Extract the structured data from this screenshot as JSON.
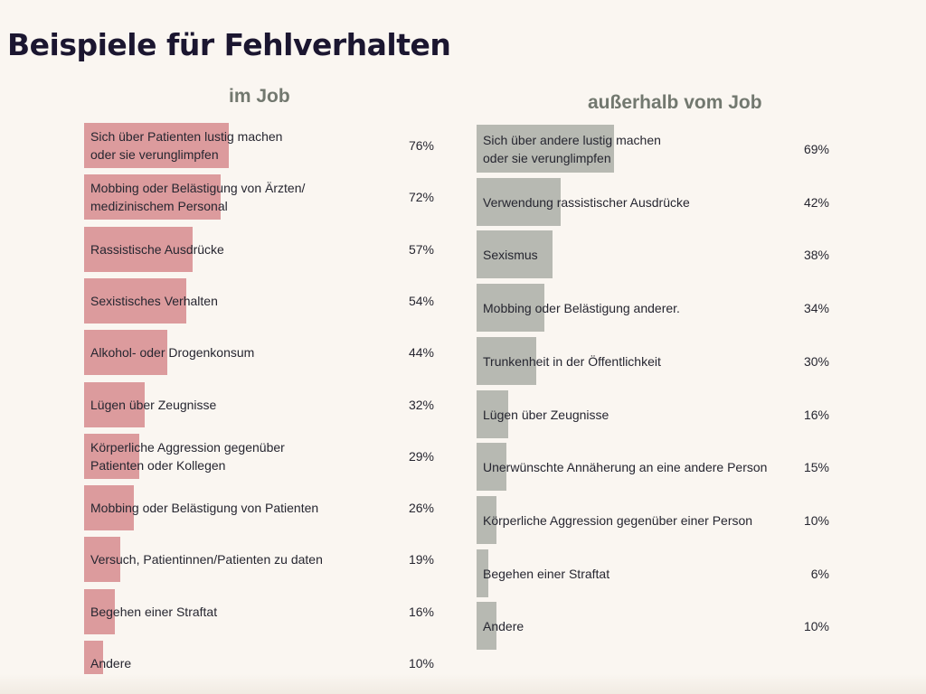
{
  "title": "Beispiele für Fehlverhalten",
  "colors": {
    "in_job_bar": "#dc9b9d",
    "outside_job_bar": "#b7b9b2",
    "subtitle": "#72786f",
    "title": "#1b1630"
  },
  "chart_data": [
    {
      "type": "bar",
      "orientation": "horizontal",
      "title": "im Job",
      "unit": "%",
      "categories": [
        "Sich über Patienten lustig machen\noder sie verunglimpfen",
        "Mobbing oder Belästigung von Ärzten/\nmedizinischem Personal",
        "Rassistische Ausdrücke",
        "Sexistisches Verhalten",
        "Alkohol- oder Drogenkonsum",
        "Lügen über Zeugnisse",
        "Körperliche Aggression gegenüber\nPatienten oder Kollegen",
        "Mobbing oder Belästigung von Patienten",
        "Versuch, Patientinnen/Patienten zu daten",
        "Begehen einer Straftat",
        "Andere"
      ],
      "values": [
        76,
        72,
        57,
        54,
        44,
        32,
        29,
        26,
        19,
        16,
        10
      ],
      "value_labels": [
        "76%",
        "72%",
        "57%",
        "54%",
        "44%",
        "32%",
        "29%",
        "26%",
        "19%",
        "16%",
        "10%"
      ]
    },
    {
      "type": "bar",
      "orientation": "horizontal",
      "title": "außerhalb vom Job",
      "unit": "%",
      "categories": [
        "Sich über andere lustig machen\noder sie verunglimpfen",
        "Verwendung rassistischer Ausdrücke",
        "Sexismus",
        "Mobbing oder Belästigung anderer.",
        "Trunkenheit in der Öffentlichkeit",
        "Lügen über Zeugnisse",
        "Unerwünschte Annäherung an eine andere Person",
        "Körperliche Aggression gegenüber einer Person",
        "Begehen einer Straftat",
        "Andere"
      ],
      "values": [
        69,
        42,
        38,
        34,
        30,
        16,
        15,
        10,
        6,
        10
      ],
      "value_labels": [
        "69%",
        "42%",
        "38%",
        "34%",
        "30%",
        "16%",
        "15%",
        "10%",
        "6%",
        "10%"
      ]
    }
  ]
}
